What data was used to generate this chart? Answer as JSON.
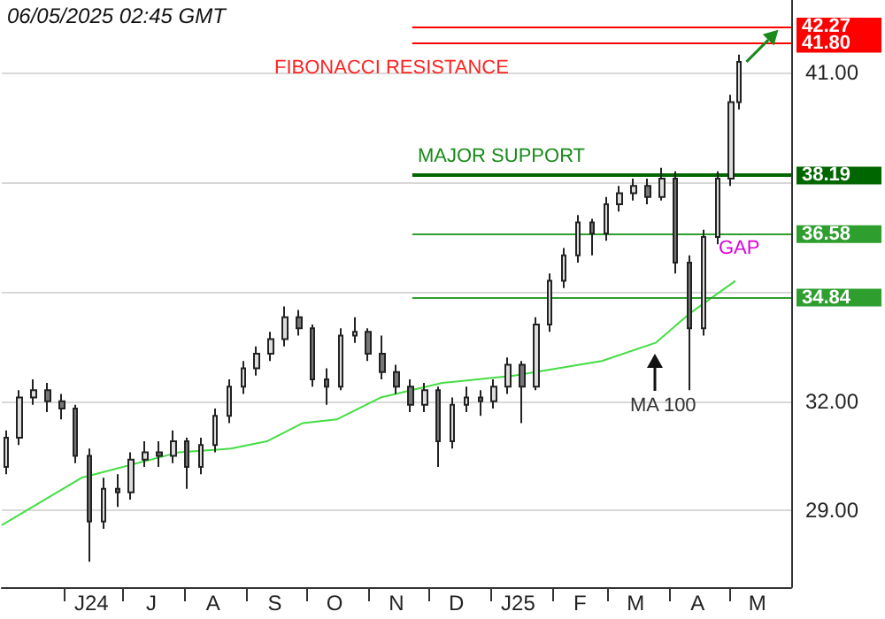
{
  "chart_data": {
    "type": "candlestick",
    "annotations": [
      "06/05/2025 02:45 GMT",
      "FIBONACCI RESISTANCE",
      "MAJOR SUPPORT",
      "GAP",
      "MA 100"
    ],
    "series": [
      {
        "color": "#222222",
        "x": [
          "2024-05-03",
          "2024-05-10",
          "2024-05-17",
          "2024-05-24",
          "2024-05-31",
          "2024-06-07",
          "2024-06-14",
          "2024-06-21",
          "2024-06-28",
          "2024-07-05",
          "2024-07-12",
          "2024-07-19",
          "2024-07-26",
          "2024-08-02",
          "2024-08-09",
          "2024-08-16",
          "2024-08-23",
          "2024-08-30",
          "2024-09-06",
          "2024-09-13",
          "2024-09-20",
          "2024-09-27",
          "2024-10-04",
          "2024-10-11",
          "2024-10-18",
          "2024-10-25",
          "2024-11-01",
          "2024-11-08",
          "2024-11-15",
          "2024-11-22",
          "2024-11-29",
          "2024-12-06",
          "2024-12-13",
          "2024-12-20",
          "2024-12-27",
          "2025-01-03",
          "2025-01-10",
          "2025-01-17",
          "2025-01-24",
          "2025-01-31",
          "2025-02-07",
          "2025-02-14",
          "2025-02-21",
          "2025-02-28",
          "2025-03-07",
          "2025-03-14",
          "2025-03-21",
          "2025-03-28",
          "2025-04-04",
          "2025-04-11",
          "2025-04-18",
          "2025-04-25",
          "2025-05-02",
          "2025-05-06"
        ],
        "ohlc": [
          [
            30.2,
            31.2,
            30.0,
            31.0
          ],
          [
            31.0,
            32.3,
            30.8,
            32.1
          ],
          [
            32.1,
            32.6,
            31.9,
            32.3
          ],
          [
            32.3,
            32.5,
            31.7,
            32.0
          ],
          [
            32.0,
            32.2,
            31.5,
            31.8
          ],
          [
            31.8,
            31.9,
            30.3,
            30.5
          ],
          [
            30.5,
            30.7,
            27.6,
            28.7
          ],
          [
            28.7,
            29.9,
            28.5,
            29.6
          ],
          [
            29.6,
            30.0,
            29.1,
            29.5
          ],
          [
            29.5,
            30.6,
            29.3,
            30.4
          ],
          [
            30.4,
            30.9,
            30.2,
            30.6
          ],
          [
            30.6,
            30.9,
            30.2,
            30.5
          ],
          [
            30.5,
            31.2,
            30.3,
            30.9
          ],
          [
            30.9,
            31.0,
            29.6,
            30.2
          ],
          [
            30.2,
            31.0,
            30.0,
            30.8
          ],
          [
            30.8,
            31.8,
            30.6,
            31.6
          ],
          [
            31.6,
            32.6,
            31.4,
            32.4
          ],
          [
            32.4,
            33.1,
            32.2,
            32.9
          ],
          [
            32.9,
            33.5,
            32.7,
            33.3
          ],
          [
            33.3,
            33.9,
            33.1,
            33.7
          ],
          [
            33.7,
            34.6,
            33.5,
            34.3
          ],
          [
            34.3,
            34.5,
            33.8,
            34.0
          ],
          [
            34.0,
            34.1,
            32.4,
            32.6
          ],
          [
            32.6,
            32.9,
            31.9,
            32.4
          ],
          [
            32.4,
            34.0,
            32.3,
            33.8
          ],
          [
            33.8,
            34.3,
            33.6,
            33.9
          ],
          [
            33.9,
            34.0,
            33.1,
            33.3
          ],
          [
            33.3,
            33.8,
            32.6,
            32.8
          ],
          [
            32.8,
            33.0,
            32.2,
            32.4
          ],
          [
            32.4,
            32.6,
            31.7,
            31.9
          ],
          [
            31.9,
            32.5,
            31.7,
            32.3
          ],
          [
            32.3,
            32.4,
            30.2,
            30.9
          ],
          [
            30.9,
            32.1,
            30.7,
            31.9
          ],
          [
            31.9,
            32.4,
            31.7,
            32.1
          ],
          [
            32.1,
            32.3,
            31.6,
            32.0
          ],
          [
            32.0,
            32.6,
            31.8,
            32.4
          ],
          [
            32.4,
            33.2,
            32.2,
            33.0
          ],
          [
            33.0,
            33.1,
            31.4,
            32.4
          ],
          [
            32.4,
            34.3,
            32.3,
            34.1
          ],
          [
            34.1,
            35.5,
            33.9,
            35.3
          ],
          [
            35.3,
            36.2,
            35.1,
            36.0
          ],
          [
            36.0,
            37.1,
            35.8,
            36.9
          ],
          [
            36.9,
            37.0,
            36.0,
            36.6
          ],
          [
            36.6,
            37.6,
            36.4,
            37.4
          ],
          [
            37.4,
            37.9,
            37.2,
            37.7
          ],
          [
            37.7,
            38.1,
            37.5,
            37.9
          ],
          [
            37.9,
            38.1,
            37.4,
            37.6
          ],
          [
            37.6,
            38.4,
            37.5,
            38.1
          ],
          [
            38.1,
            38.3,
            35.5,
            35.8
          ],
          [
            35.8,
            36.0,
            32.3,
            34.0
          ],
          [
            34.0,
            36.7,
            33.8,
            36.5
          ],
          [
            36.5,
            38.3,
            36.3,
            38.1
          ],
          [
            38.1,
            40.4,
            37.9,
            40.2
          ],
          [
            40.2,
            41.5,
            40.0,
            41.3
          ]
        ]
      },
      {
        "type": "line",
        "color": "#44dd44",
        "x": [
          "2024-05-01",
          "2024-06-10",
          "2024-07-29",
          "2024-08-24",
          "2024-09-11",
          "2024-09-29",
          "2024-10-16",
          "2024-11-07",
          "2024-12-08",
          "2025-01-13",
          "2025-02-26",
          "2025-03-25",
          "2025-04-11",
          "2025-05-04"
        ],
        "values": [
          28.6,
          29.9,
          30.6,
          30.7,
          30.9,
          31.4,
          31.5,
          32.1,
          32.5,
          32.7,
          33.1,
          33.6,
          34.4,
          35.3
        ]
      }
    ],
    "ref_lines": [
      {
        "axis": "y",
        "value": 42.27,
        "label": "42.27",
        "color": "#ff0000"
      },
      {
        "axis": "y",
        "value": 41.8,
        "label": "41.80",
        "color": "#ff0000"
      },
      {
        "axis": "y",
        "value": 38.19,
        "label": "38.19",
        "color": "#006600"
      },
      {
        "axis": "y",
        "value": 36.58,
        "label": "36.58",
        "color": "#2e9e2e"
      },
      {
        "axis": "y",
        "value": 34.84,
        "label": "34.84",
        "color": "#2e9e2e"
      }
    ],
    "xlim": [
      "2024-05-01",
      "2025-06-01"
    ],
    "xticks": [
      {
        "value": "2024-06-01",
        "label": null
      },
      {
        "value": "2024-06-15",
        "label": "J24"
      },
      {
        "value": "2024-07-01",
        "label": null
      },
      {
        "value": "2024-07-15",
        "label": "J"
      },
      {
        "value": "2024-08-01",
        "label": null
      },
      {
        "value": "2024-08-15",
        "label": "A"
      },
      {
        "value": "2024-09-01",
        "label": null
      },
      {
        "value": "2024-09-15",
        "label": "S"
      },
      {
        "value": "2024-10-01",
        "label": null
      },
      {
        "value": "2024-10-15",
        "label": "O"
      },
      {
        "value": "2024-11-01",
        "label": null
      },
      {
        "value": "2024-11-15",
        "label": "N"
      },
      {
        "value": "2024-12-01",
        "label": null
      },
      {
        "value": "2024-12-15",
        "label": "D"
      },
      {
        "value": "2025-01-01",
        "label": null
      },
      {
        "value": "2025-01-15",
        "label": "J25"
      },
      {
        "value": "2025-02-01",
        "label": null
      },
      {
        "value": "2025-02-15",
        "label": "F"
      },
      {
        "value": "2025-03-01",
        "label": null
      },
      {
        "value": "2025-03-15",
        "label": "M"
      },
      {
        "value": "2025-04-01",
        "label": null
      },
      {
        "value": "2025-04-15",
        "label": "A"
      },
      {
        "value": "2025-05-01",
        "label": null
      },
      {
        "value": "2025-05-15",
        "label": "M"
      }
    ],
    "ylim": [
      26.9,
      43.0
    ],
    "yticks": [
      {
        "value": 29,
        "label": "29.00"
      },
      {
        "value": 32,
        "label": "32.00"
      },
      {
        "value": 35,
        "label": null
      },
      {
        "value": 38,
        "label": null
      },
      {
        "value": 41,
        "label": "41.00"
      }
    ],
    "grid": "y"
  }
}
